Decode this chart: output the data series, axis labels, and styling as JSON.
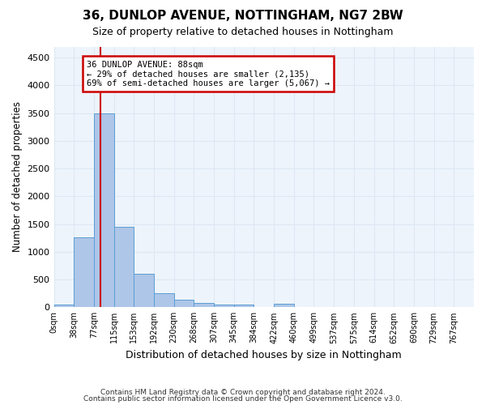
{
  "title1": "36, DUNLOP AVENUE, NOTTINGHAM, NG7 2BW",
  "title2": "Size of property relative to detached houses in Nottingham",
  "xlabel": "Distribution of detached houses by size in Nottingham",
  "ylabel": "Number of detached properties",
  "bin_labels": [
    "0sqm",
    "38sqm",
    "77sqm",
    "115sqm",
    "153sqm",
    "192sqm",
    "230sqm",
    "268sqm",
    "307sqm",
    "345sqm",
    "384sqm",
    "422sqm",
    "460sqm",
    "499sqm",
    "537sqm",
    "575sqm",
    "614sqm",
    "652sqm",
    "690sqm",
    "729sqm",
    "767sqm"
  ],
  "bar_heights": [
    55,
    1260,
    3500,
    1450,
    600,
    255,
    130,
    80,
    50,
    50,
    0,
    60,
    0,
    0,
    0,
    0,
    0,
    0,
    0,
    0,
    0
  ],
  "bar_color": "#aec6e8",
  "bar_edge_color": "#5a9fd4",
  "bin_width": 38,
  "property_line_x": 88,
  "property_line_color": "#cc0000",
  "annotation_title": "36 DUNLOP AVENUE: 88sqm",
  "annotation_line1": "← 29% of detached houses are smaller (2,135)",
  "annotation_line2": "69% of semi-detached houses are larger (5,067) →",
  "annotation_box_color": "#cc0000",
  "ylim": [
    0,
    4700
  ],
  "yticks": [
    0,
    500,
    1000,
    1500,
    2000,
    2500,
    3000,
    3500,
    4000,
    4500
  ],
  "grid_color": "#dce8f5",
  "bg_color": "#eef4fb",
  "footer1": "Contains HM Land Registry data © Crown copyright and database right 2024.",
  "footer2": "Contains public sector information licensed under the Open Government Licence v3.0."
}
